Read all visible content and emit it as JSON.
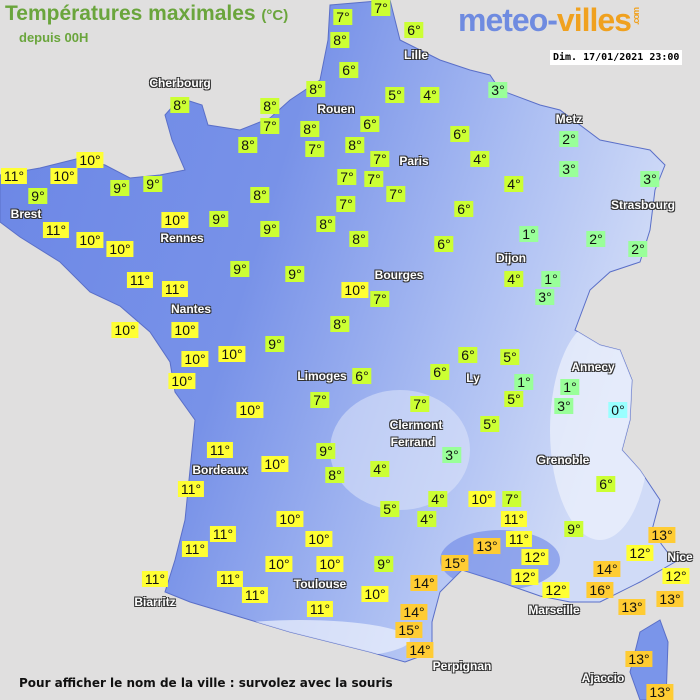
{
  "header": {
    "title": "Températures maximales",
    "unit": "(°C)",
    "subtitle": "depuis 00H"
  },
  "logo": {
    "part1": "meteo-",
    "part2": "villes",
    "suffix": ".com"
  },
  "timestamp": "Dim. 17/01/2021 23:00",
  "footer": "Pour afficher le nom de la ville : survolez avec la souris",
  "colors": {
    "background": "#e0dfdf",
    "land_low": "#6b86e6",
    "land_high": "#c9d6f6",
    "cold": "#99ffff",
    "cool": "#99ff99",
    "mild": "#ccff33",
    "warm": "#ffff33",
    "hot": "#ffcc33"
  },
  "cities": [
    "Cherbourg",
    "Lille",
    "Rouen",
    "Paris",
    "Metz",
    "Strasbourg",
    "Brest",
    "Rennes",
    "Nantes",
    "Dijon",
    "Bourges",
    "Limoges",
    "Ly",
    "Annecy",
    "Clermont",
    "Ferrand",
    "Grenoble",
    "Bordeaux",
    "Toulouse",
    "Marseille",
    "Nice",
    "Biarritz",
    "Perpignan",
    "Ajaccio"
  ],
  "temperatures": [
    7,
    7,
    8,
    6,
    6,
    8,
    5,
    4,
    3,
    8,
    8,
    7,
    8,
    7,
    8,
    6,
    8,
    7,
    6,
    4,
    7,
    7,
    7,
    7,
    8,
    8,
    8,
    9,
    4,
    6,
    6,
    2,
    3,
    3,
    2,
    2,
    1,
    4,
    1,
    3,
    10,
    11,
    9,
    10,
    9,
    9,
    11,
    10,
    9,
    10,
    10,
    11,
    11,
    9,
    9,
    10,
    7,
    10,
    10,
    8,
    9,
    10,
    10,
    10,
    6,
    7,
    10,
    6,
    6,
    5,
    1,
    5,
    1,
    3,
    0,
    7,
    5,
    3,
    6,
    11,
    10,
    9,
    8,
    4,
    11,
    5,
    4,
    4,
    10,
    7,
    11,
    9,
    10,
    10,
    11,
    11,
    13,
    11,
    12,
    12,
    12,
    14,
    12,
    13,
    12,
    10,
    10,
    9,
    15,
    14,
    16,
    13,
    13,
    11,
    11,
    11,
    10,
    11,
    14,
    15,
    14,
    13,
    13
  ]
}
